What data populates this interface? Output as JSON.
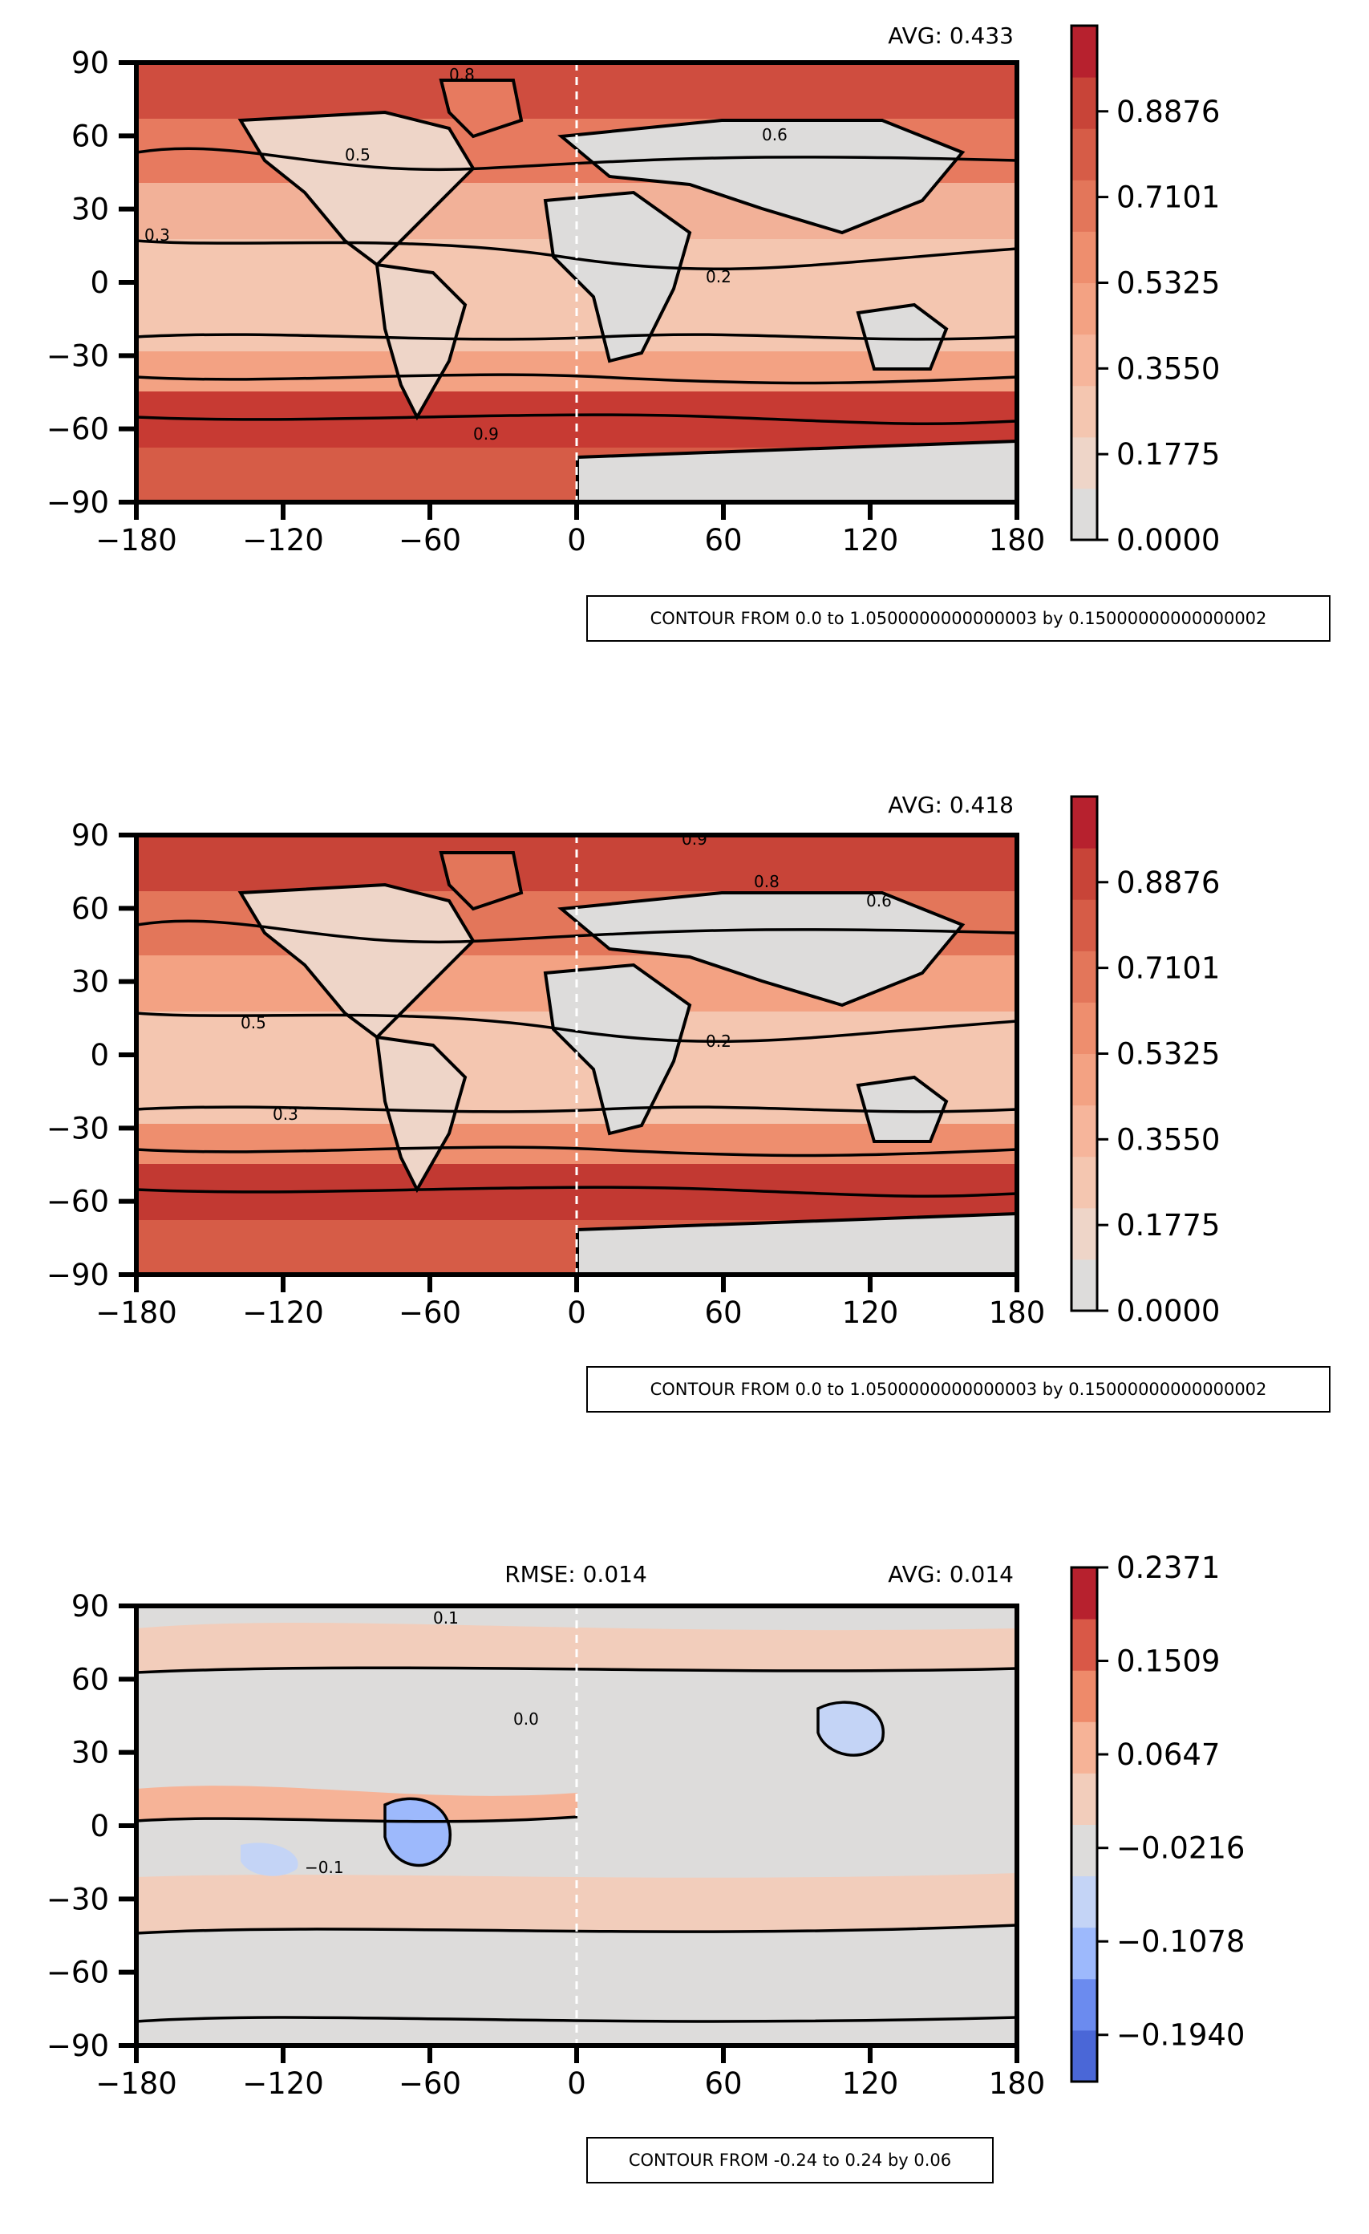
{
  "chart_data": [
    {
      "type": "heatmap",
      "avg_text": "AVG: 0.433",
      "rmse_text": "",
      "x_ticks": [
        "−180",
        "−120",
        "−60",
        "0",
        "60",
        "120",
        "180"
      ],
      "y_ticks": [
        "90",
        "60",
        "30",
        "0",
        "−30",
        "−60",
        "−90"
      ],
      "xlim": [
        -180,
        180
      ],
      "ylim": [
        -90,
        90
      ],
      "colorbar": {
        "range": [
          0.0,
          1.065
        ],
        "ticks": [
          "0.0000",
          "0.1775",
          "0.3550",
          "0.5325",
          "0.7101",
          "0.8876"
        ],
        "tick_values": [
          0.0,
          0.1775,
          0.355,
          0.5325,
          0.7101,
          0.8876
        ],
        "colors": [
          "#dddcdb",
          "#eed5c8",
          "#f4c6b0",
          "#f6b59b",
          "#f3a283",
          "#ee8e6e",
          "#e3765a",
          "#d65c47",
          "#c84438",
          "#b7212e"
        ]
      },
      "contour_labels": [
        "0.8",
        "0.6",
        "0.5",
        "0.3",
        "0.2",
        "0.9"
      ],
      "contour_note": "CONTOUR FROM 0.0 to 1.0500000000000003 by 0.15000000000000002"
    },
    {
      "type": "heatmap",
      "avg_text": "AVG: 0.418",
      "rmse_text": "",
      "x_ticks": [
        "−180",
        "−120",
        "−60",
        "0",
        "60",
        "120",
        "180"
      ],
      "y_ticks": [
        "90",
        "60",
        "30",
        "0",
        "−30",
        "−60",
        "−90"
      ],
      "xlim": [
        -180,
        180
      ],
      "ylim": [
        -90,
        90
      ],
      "colorbar": {
        "range": [
          0.0,
          1.065
        ],
        "ticks": [
          "0.0000",
          "0.1775",
          "0.3550",
          "0.5325",
          "0.7101",
          "0.8876"
        ],
        "tick_values": [
          0.0,
          0.1775,
          0.355,
          0.5325,
          0.7101,
          0.8876
        ],
        "colors": [
          "#dddcdb",
          "#eed5c8",
          "#f4c6b0",
          "#f6b59b",
          "#f3a283",
          "#ee8e6e",
          "#e3765a",
          "#d65c47",
          "#c84438",
          "#b7212e"
        ]
      },
      "contour_labels": [
        "0.9",
        "0.8",
        "0.6",
        "0.5",
        "0.3",
        "0.2"
      ],
      "contour_note": "CONTOUR FROM 0.0 to 1.0500000000000003 by 0.15000000000000002"
    },
    {
      "type": "heatmap",
      "avg_text": "AVG: 0.014",
      "rmse_text": "RMSE: 0.014",
      "x_ticks": [
        "−180",
        "−120",
        "−60",
        "0",
        "60",
        "120",
        "180"
      ],
      "y_ticks": [
        "90",
        "60",
        "30",
        "0",
        "−30",
        "−60",
        "−90"
      ],
      "xlim": [
        -180,
        180
      ],
      "ylim": [
        -90,
        90
      ],
      "colorbar": {
        "range": [
          -0.2371,
          0.2371
        ],
        "ticks": [
          "−0.1940",
          "−0.1078",
          "−0.0216",
          "0.0647",
          "0.1509",
          "0.2371"
        ],
        "tick_values": [
          -0.194,
          -0.1078,
          -0.0216,
          0.0647,
          0.1509,
          0.2371
        ],
        "colors": [
          "#4a67d7",
          "#6b8bef",
          "#9db9fc",
          "#c4d4f6",
          "#dddcdb",
          "#f2cdbb",
          "#f6b397",
          "#ee8a6a",
          "#d95847",
          "#b7212e"
        ]
      },
      "contour_labels": [
        "0.0",
        "0.1",
        "−0.1"
      ],
      "contour_note": "CONTOUR FROM -0.24 to 0.24 by 0.06"
    }
  ]
}
